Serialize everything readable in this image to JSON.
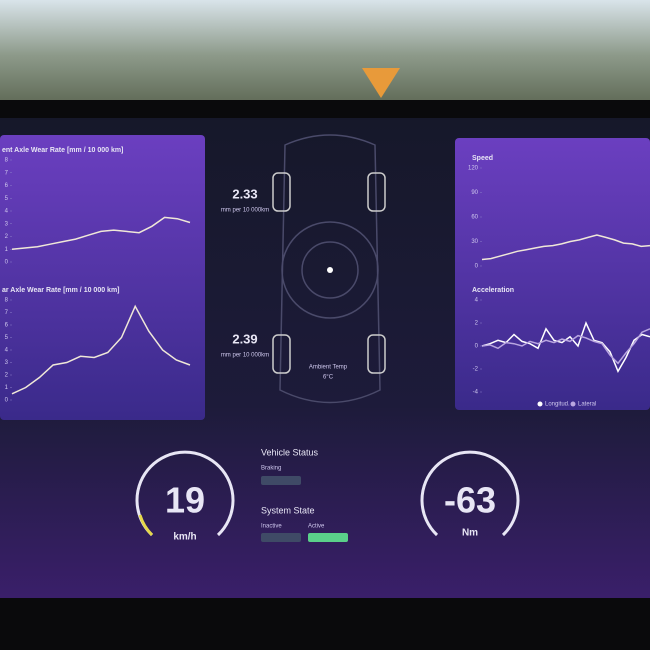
{
  "left_panel": {
    "front_axle": {
      "title": "ent Axle Wear Rate [mm / 10 000 km]",
      "ylim": [
        0,
        8
      ],
      "yticks": [
        0,
        1,
        2,
        3,
        4,
        5,
        6,
        7,
        8
      ],
      "values": [
        1,
        1.1,
        1.2,
        1.4,
        1.6,
        1.8,
        2.1,
        2.4,
        2.5,
        2.4,
        2.3,
        2.8,
        3.5,
        3.4,
        3.1
      ]
    },
    "rear_axle": {
      "title": "ar Axle Wear Rate [mm / 10 000 km]",
      "ylim": [
        0,
        8
      ],
      "yticks": [
        0,
        1,
        2,
        3,
        4,
        5,
        6,
        7,
        8
      ],
      "values": [
        0.5,
        1,
        1.8,
        2.8,
        3,
        3.5,
        3.4,
        3.8,
        5,
        7.5,
        5.5,
        4,
        3.2,
        2.8
      ]
    }
  },
  "center": {
    "front_wear": {
      "value": "2.33",
      "unit": "mm per 10 000km"
    },
    "rear_wear": {
      "value": "2.39",
      "unit": "mm per 10 000km"
    },
    "ambient": {
      "label": "Ambient Temp",
      "value": "6°C"
    }
  },
  "right_panel": {
    "speed": {
      "title": "Speed",
      "ylim": [
        0,
        120
      ],
      "yticks": [
        0,
        30,
        60,
        90,
        120
      ],
      "values": [
        8,
        9,
        12,
        15,
        18,
        20,
        22,
        24,
        25,
        27,
        30,
        32,
        35,
        38,
        35,
        32,
        28,
        27,
        24,
        25
      ]
    },
    "acceleration": {
      "title": "Acceleration",
      "ylim": [
        -4,
        4
      ],
      "yticks": [
        -4,
        -2,
        0,
        2,
        4
      ],
      "series": [
        {
          "name": "Longitud.",
          "color": "#ffffff",
          "values": [
            0,
            0.2,
            0.5,
            0.3,
            1,
            0.4,
            0.2,
            -0.2,
            1.5,
            0.5,
            0.3,
            0.8,
            0,
            2,
            0.5,
            0.3,
            -0.5,
            -2.2,
            -1,
            0.5,
            1,
            0.8
          ]
        },
        {
          "name": "Lateral",
          "color": "#b9a6e0",
          "values": [
            0,
            0.1,
            -0.2,
            0.3,
            0.2,
            0,
            0.4,
            0.2,
            0.5,
            0.3,
            0.6,
            0.4,
            0.9,
            0.7,
            0.4,
            0.2,
            -0.8,
            -1.5,
            -0.6,
            0.2,
            1.2,
            1.5
          ]
        }
      ]
    }
  },
  "gauges": {
    "speed": {
      "value": "19",
      "unit": "km/h"
    },
    "torque": {
      "value": "-63",
      "unit": "Nm"
    }
  },
  "status": {
    "title": "Vehicle Status",
    "braking": "Braking",
    "system_title": "System State",
    "inactive": "Inactive",
    "active": "Active"
  }
}
